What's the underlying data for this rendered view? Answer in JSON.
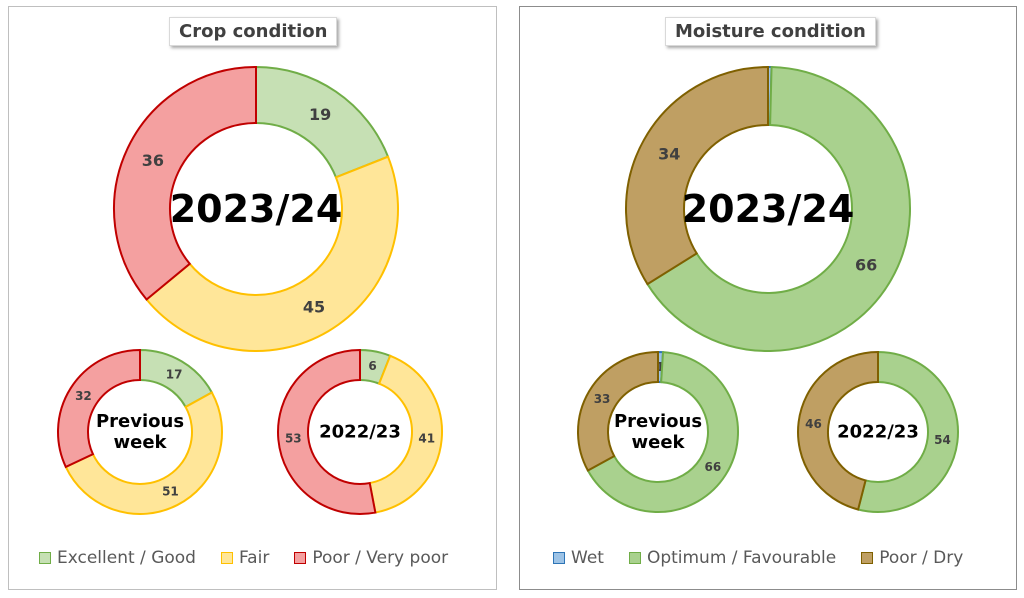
{
  "colors": {
    "excellent_fill": "#c6e0b4",
    "excellent_stroke": "#70ad47",
    "fair_fill": "#ffe699",
    "fair_stroke": "#ffc000",
    "poor_fill": "#f4a0a0",
    "poor_stroke": "#c00000",
    "wet_fill": "#9dc3e6",
    "wet_stroke": "#2e75b6",
    "optimum_fill": "#a9d18e",
    "optimum_stroke": "#70ad47",
    "dry_fill": "#bf9f63",
    "dry_stroke": "#7f6000"
  },
  "crop": {
    "title": "Crop condition"
  },
  "moisture": {
    "title": "Moisture condition"
  },
  "chart_data": [
    {
      "type": "pie",
      "title": "Crop condition",
      "legend": "bottom",
      "categories": [
        "Excellent / Good",
        "Fair",
        "Poor / Very poor"
      ],
      "series": [
        {
          "name": "2023/24",
          "values": [
            19,
            45,
            36
          ],
          "labels": [
            "19",
            "45",
            "36"
          ]
        },
        {
          "name": "Previous week",
          "values": [
            17,
            51,
            32
          ],
          "labels": [
            "17",
            "51",
            "32"
          ]
        },
        {
          "name": "2022/23",
          "values": [
            6,
            41,
            53
          ],
          "labels": [
            "6",
            "41",
            "53"
          ]
        }
      ]
    },
    {
      "type": "pie",
      "title": "Moisture condition",
      "legend": "bottom",
      "categories": [
        "Wet",
        "Optimum / Favourable",
        "Poor / Dry"
      ],
      "series": [
        {
          "name": "2023/24",
          "values": [
            0.4,
            66,
            34
          ],
          "labels": [
            "",
            "66",
            "34"
          ]
        },
        {
          "name": "Previous week",
          "values": [
            1,
            66,
            33
          ],
          "labels": [
            "1",
            "66",
            "33"
          ]
        },
        {
          "name": "2022/23",
          "values": [
            0,
            54,
            46
          ],
          "labels": [
            "",
            "54",
            "46"
          ]
        }
      ]
    }
  ]
}
